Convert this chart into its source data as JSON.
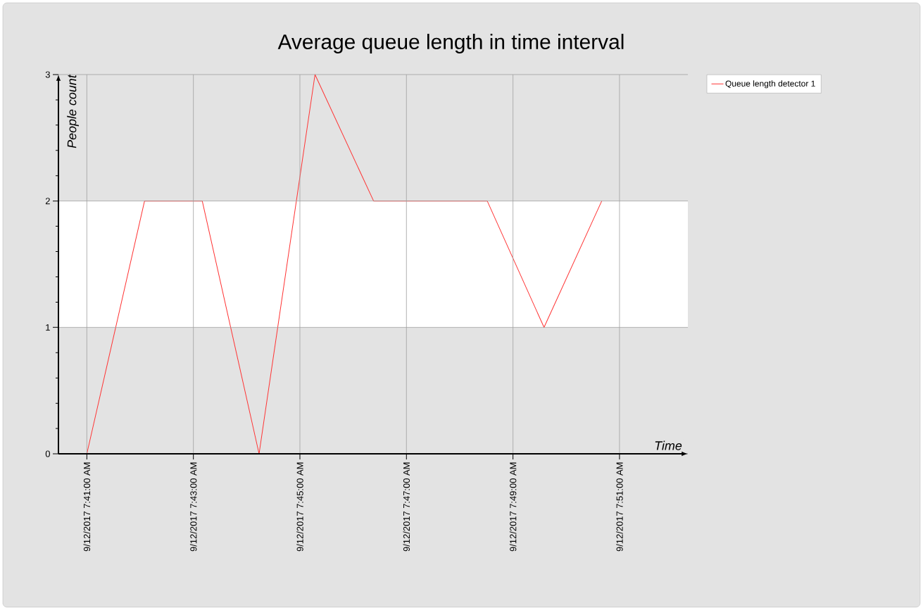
{
  "chart_data": {
    "type": "line",
    "title": "Average queue length in time interval",
    "xlabel": "Time",
    "ylabel": "People count",
    "x": [
      "2017-09-12T07:41:00",
      "2017-09-12T07:42:05",
      "2017-09-12T07:43:10",
      "2017-09-12T07:44:14",
      "2017-09-12T07:45:17",
      "2017-09-12T07:46:23",
      "2017-09-12T07:48:31",
      "2017-09-12T07:49:35",
      "2017-09-12T07:50:40"
    ],
    "series": [
      {
        "name": "Queue length detector 1",
        "color": "#ff3333",
        "values": [
          0,
          2,
          2,
          0,
          3,
          2,
          2,
          1,
          2
        ]
      }
    ],
    "xlim": [
      "2017-09-12T07:40:28",
      "2017-09-12T07:52:17"
    ],
    "xticks": [
      {
        "value": "2017-09-12T07:41:00",
        "label": "9/12/2017 7:41:00 AM"
      },
      {
        "value": "2017-09-12T07:43:00",
        "label": "9/12/2017 7:43:00 AM"
      },
      {
        "value": "2017-09-12T07:45:00",
        "label": "9/12/2017 7:45:00 AM"
      },
      {
        "value": "2017-09-12T07:47:00",
        "label": "9/12/2017 7:47:00 AM"
      },
      {
        "value": "2017-09-12T07:49:00",
        "label": "9/12/2017 7:49:00 AM"
      },
      {
        "value": "2017-09-12T07:51:00",
        "label": "9/12/2017 7:51:00 AM"
      }
    ],
    "ylim": [
      0,
      3
    ],
    "yticks": [
      0,
      1,
      2,
      3
    ],
    "bands": [
      {
        "axis": "y",
        "from": 0,
        "to": 1,
        "color": "#e3e3e3"
      },
      {
        "axis": "y",
        "from": 2,
        "to": 3,
        "color": "#e3e3e3"
      }
    ],
    "grid": true,
    "legend": "top right",
    "marker": "none",
    "line_style": "solid"
  }
}
